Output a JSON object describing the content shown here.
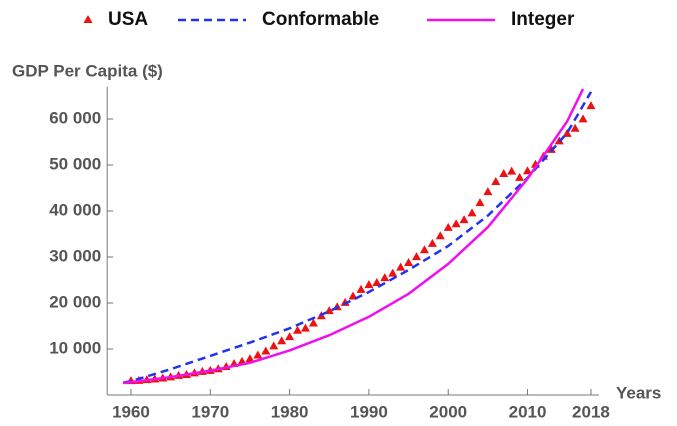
{
  "chart_data": {
    "type": "scatter",
    "y_label": "GDP Per Capita ($)",
    "x_label": "Years",
    "xlim": [
      1957,
      2019
    ],
    "ylim": [
      0,
      67000
    ],
    "xticks": [
      1960,
      1970,
      1980,
      1990,
      2000,
      2010,
      2018
    ],
    "yticks": [
      {
        "value": 10000,
        "label": "10 000"
      },
      {
        "value": 20000,
        "label": "20 000"
      },
      {
        "value": 30000,
        "label": "30 000"
      },
      {
        "value": 40000,
        "label": "40 000"
      },
      {
        "value": 50000,
        "label": "50 000"
      },
      {
        "value": 60000,
        "label": "60 000"
      }
    ],
    "legend": "top",
    "series": [
      {
        "name": "USA",
        "color": "#ee1111",
        "style": "marker",
        "x": [
          1960,
          1961,
          1962,
          1963,
          1964,
          1965,
          1966,
          1967,
          1968,
          1969,
          1970,
          1971,
          1972,
          1973,
          1974,
          1975,
          1976,
          1977,
          1978,
          1979,
          1980,
          1981,
          1982,
          1983,
          1984,
          1985,
          1986,
          1987,
          1988,
          1989,
          1990,
          1991,
          1992,
          1993,
          1994,
          1995,
          1996,
          1997,
          1998,
          1999,
          2000,
          2001,
          2002,
          2003,
          2004,
          2005,
          2006,
          2007,
          2008,
          2009,
          2010,
          2011,
          2012,
          2013,
          2014,
          2015,
          2016,
          2017,
          2018
        ],
        "values": [
          3007,
          3067,
          3244,
          3375,
          3574,
          3828,
          4146,
          4336,
          4696,
          5032,
          5234,
          5609,
          6094,
          6726,
          7226,
          7801,
          8592,
          9453,
          10565,
          11674,
          12575,
          13976,
          14434,
          15544,
          17121,
          18237,
          19071,
          20039,
          21417,
          22857,
          23889,
          24342,
          25419,
          26387,
          27695,
          28691,
          29968,
          31459,
          32854,
          34515,
          36335,
          37133,
          38023,
          39497,
          41712,
          44115,
          46299,
          48050,
          48570,
          47195,
          48651,
          50066,
          51784,
          53291,
          55124,
          56763,
          57867,
          59915,
          62805
        ]
      },
      {
        "name": "Conformable",
        "color": "#2233ee",
        "style": "dashed",
        "x": [
          1959,
          1960,
          1965,
          1970,
          1975,
          1980,
          1985,
          1990,
          1995,
          2000,
          2005,
          2010,
          2015,
          2018
        ],
        "values": [
          2700,
          3000,
          5600,
          8500,
          11400,
          14500,
          18200,
          22400,
          27200,
          32400,
          39000,
          47200,
          57000,
          65900
        ]
      },
      {
        "name": "Integer",
        "color": "#ee11ee",
        "style": "solid",
        "x": [
          1959,
          1960,
          1965,
          1970,
          1975,
          1980,
          1985,
          1990,
          1995,
          2000,
          2005,
          2010,
          2015,
          2017
        ],
        "values": [
          2600,
          2800,
          3900,
          5300,
          7000,
          9700,
          13000,
          17000,
          22000,
          28500,
          36500,
          47000,
          59500,
          66500
        ]
      }
    ]
  }
}
